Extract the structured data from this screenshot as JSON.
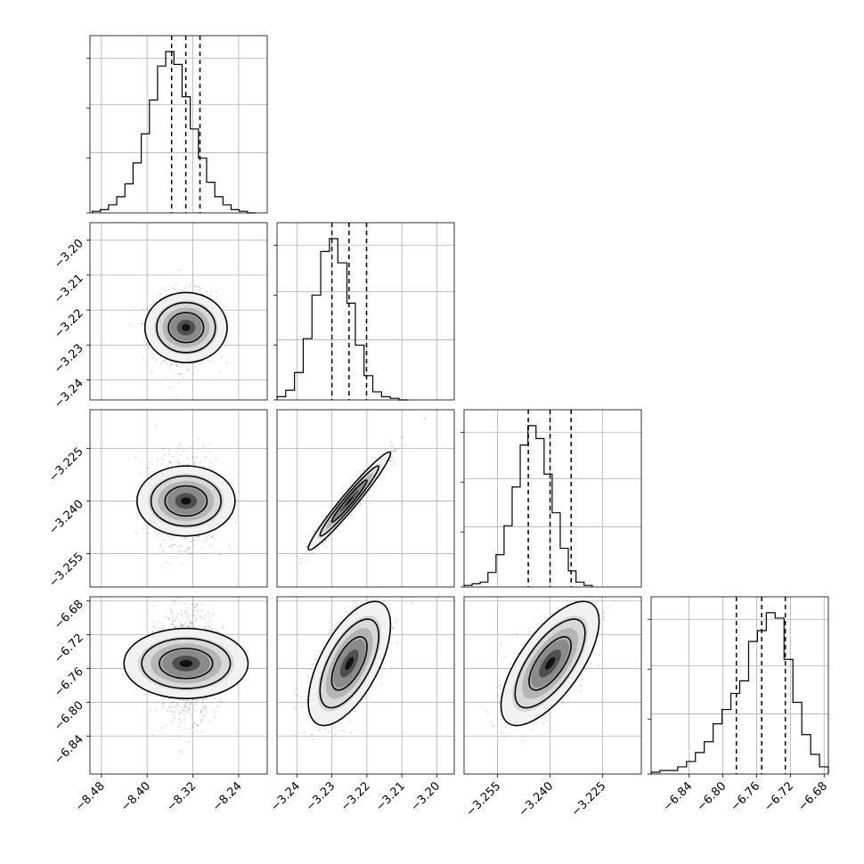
{
  "chart_data": {
    "type": "corner",
    "title": "",
    "grid": true,
    "parameters": [
      {
        "label": "",
        "range": [
          -8.5,
          -8.19
        ],
        "ticks": [
          "−8.48",
          "−8.40",
          "−8.32",
          "−8.24"
        ],
        "tick_values": [
          -8.48,
          -8.4,
          -8.32,
          -8.24
        ],
        "quantiles": [
          -8.3572,
          -8.3324,
          -8.3076
        ]
      },
      {
        "label": "",
        "range": [
          -3.2457,
          -3.195
        ],
        "ticks": [
          "−3.24",
          "−3.23",
          "−3.22",
          "−3.21",
          "−3.20"
        ],
        "tick_values": [
          -3.24,
          -3.23,
          -3.22,
          -3.21,
          -3.2
        ],
        "quantiles": [
          -3.23,
          -3.2251,
          -3.2201
        ]
      },
      {
        "label": "",
        "range": [
          -3.2645,
          -3.214
        ],
        "ticks": [
          "−3.255",
          "−3.240",
          "−3.225"
        ],
        "tick_values": [
          -3.255,
          -3.24,
          -3.225
        ],
        "quantiles": [
          -3.2462,
          -3.24,
          -3.234
        ]
      },
      {
        "label": "",
        "range": [
          -6.885,
          -6.675
        ],
        "ticks": [
          "−6.84",
          "−6.80",
          "−6.76",
          "−6.72",
          "−6.68"
        ],
        "tick_values": [
          -6.84,
          -6.8,
          -6.76,
          -6.72,
          -6.68
        ],
        "quantiles": [
          -6.784,
          -6.754,
          -6.726
        ]
      }
    ],
    "histograms": [
      {
        "param": 0,
        "bins": [
          -8.4961,
          -8.4818,
          -8.4675,
          -8.4532,
          -8.4389,
          -8.4246,
          -8.4103,
          -8.396,
          -8.3818,
          -8.3675,
          -8.3532,
          -8.3389,
          -8.3246,
          -8.3103,
          -8.296,
          -8.2817,
          -8.2674,
          -8.2532,
          -8.2389,
          -8.2246,
          -8.2103
        ],
        "counts": [
          1,
          2,
          5,
          10,
          18,
          31,
          49,
          70,
          91,
          100,
          92,
          72,
          52,
          34,
          19,
          10,
          5,
          2,
          1,
          0
        ]
      },
      {
        "param": 1,
        "bins": [
          -3.2457,
          -3.2432,
          -3.2407,
          -3.2382,
          -3.2357,
          -3.2332,
          -3.2307,
          -3.2283,
          -3.2257,
          -3.2233,
          -3.2208,
          -3.2183,
          -3.2158,
          -3.2133,
          -3.2108,
          -3.2083
        ],
        "counts": [
          2,
          6,
          17,
          38,
          65,
          92,
          100,
          85,
          60,
          34,
          15,
          5,
          2,
          1,
          0
        ]
      },
      {
        "param": 2,
        "bins": [
          -3.2645,
          -3.2622,
          -3.2599,
          -3.2577,
          -3.2554,
          -3.2531,
          -3.2508,
          -3.2485,
          -3.2463,
          -3.244,
          -3.2417,
          -3.2394,
          -3.2371,
          -3.2348,
          -3.2326,
          -3.2303,
          -3.228
        ],
        "counts": [
          1,
          2,
          3,
          9,
          20,
          38,
          62,
          88,
          100,
          92,
          70,
          46,
          24,
          10,
          3,
          1
        ]
      },
      {
        "param": 3,
        "bins": [
          -6.885,
          -6.8745,
          -6.864,
          -6.8535,
          -6.843,
          -6.8325,
          -6.822,
          -6.8115,
          -6.801,
          -6.7905,
          -6.78,
          -6.7695,
          -6.759,
          -6.7485,
          -6.738,
          -6.7275,
          -6.717,
          -6.7065,
          -6.696,
          -6.6855,
          -6.675
        ],
        "counts": [
          1,
          2,
          2,
          4,
          7,
          12,
          18,
          28,
          36,
          45,
          52,
          74,
          80,
          90,
          87,
          64,
          40,
          22,
          11,
          4
        ]
      }
    ],
    "pairs": [
      {
        "x": 0,
        "y": 1,
        "center": [
          -8.332,
          -3.225
        ],
        "sigma": [
          0.025,
          0.0048
        ],
        "rho": 0.0
      },
      {
        "x": 0,
        "y": 2,
        "center": [
          -8.332,
          -3.24
        ],
        "sigma": [
          0.025,
          0.0057
        ],
        "rho": 0.0
      },
      {
        "x": 1,
        "y": 2,
        "center": [
          -3.225,
          -3.24
        ],
        "sigma": [
          0.0048,
          0.0057
        ],
        "rho": 0.97
      },
      {
        "x": 0,
        "y": 3,
        "center": [
          -8.332,
          -6.754
        ],
        "sigma": [
          0.025,
          0.03
        ],
        "rho": 0.0
      },
      {
        "x": 1,
        "y": 3,
        "center": [
          -3.225,
          -6.754
        ],
        "sigma": [
          0.0048,
          0.03
        ],
        "rho": 0.62
      },
      {
        "x": 2,
        "y": 3,
        "center": [
          -3.24,
          -6.754
        ],
        "sigma": [
          0.0057,
          0.03
        ],
        "rho": 0.68
      }
    ]
  }
}
